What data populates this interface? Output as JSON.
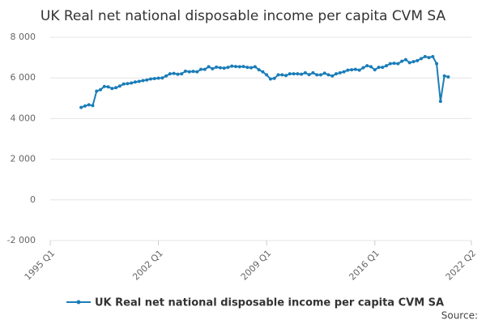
{
  "chart_data": {
    "type": "line",
    "title": "UK Real net national disposable income per capita CVM SA",
    "source": "Source:",
    "categories": [
      "1995 Q1",
      null,
      null,
      null,
      null,
      null,
      null,
      null,
      null,
      null,
      null,
      null,
      null,
      null,
      null,
      null,
      null,
      null,
      null,
      null,
      null,
      null,
      null,
      null,
      null,
      null,
      null,
      null,
      "2002 Q1",
      null,
      null,
      null,
      null,
      null,
      null,
      null,
      null,
      null,
      null,
      null,
      null,
      null,
      null,
      null,
      null,
      null,
      null,
      null,
      null,
      null,
      null,
      null,
      null,
      null,
      null,
      null,
      "2009 Q1",
      null,
      null,
      null,
      null,
      null,
      null,
      null,
      null,
      null,
      null,
      null,
      null,
      null,
      null,
      null,
      null,
      null,
      null,
      null,
      null,
      null,
      null,
      null,
      null,
      null,
      null,
      null,
      "2016 Q1",
      null,
      null,
      null,
      null,
      null,
      null,
      null,
      null,
      null,
      null,
      null,
      null,
      null,
      null,
      null,
      null,
      null,
      null,
      null,
      null,
      null,
      null,
      null,
      null,
      "2022 Q2"
    ],
    "series": [
      {
        "name": "UK Real net national disposable income per capita CVM SA",
        "color": "#1a7db8",
        "values": [
          null,
          null,
          null,
          null,
          null,
          null,
          null,
          null,
          4550,
          4620,
          4680,
          4640,
          5350,
          5420,
          5580,
          5560,
          5480,
          5520,
          5600,
          5700,
          5720,
          5750,
          5800,
          5830,
          5870,
          5900,
          5950,
          5970,
          5990,
          6000,
          6100,
          6200,
          6220,
          6180,
          6200,
          6330,
          6300,
          6320,
          6300,
          6420,
          6420,
          6550,
          6450,
          6530,
          6500,
          6480,
          6520,
          6580,
          6560,
          6550,
          6560,
          6520,
          6500,
          6550,
          6400,
          6300,
          6150,
          5950,
          5980,
          6150,
          6150,
          6120,
          6200,
          6200,
          6200,
          6180,
          6250,
          6160,
          6250,
          6150,
          6150,
          6230,
          6150,
          6100,
          6200,
          6250,
          6300,
          6380,
          6400,
          6420,
          6380,
          6500,
          6600,
          6550,
          6400,
          6520,
          6520,
          6600,
          6700,
          6720,
          6700,
          6820,
          6900,
          6750,
          6800,
          6850,
          6950,
          7050,
          7000,
          7050,
          6700,
          4850,
          6100,
          6050,
          null,
          null,
          null,
          null,
          null,
          null
        ]
      }
    ],
    "ylim": [
      -2000,
      8000
    ],
    "yticks": [
      {
        "value": -2000,
        "label": "-2 000"
      },
      0,
      {
        "value": 2000,
        "label": "2 000"
      },
      {
        "value": 4000,
        "label": "4 000"
      },
      {
        "value": 6000,
        "label": "6 000"
      },
      {
        "value": 8000,
        "label": "8 000"
      }
    ],
    "grid": true
  }
}
